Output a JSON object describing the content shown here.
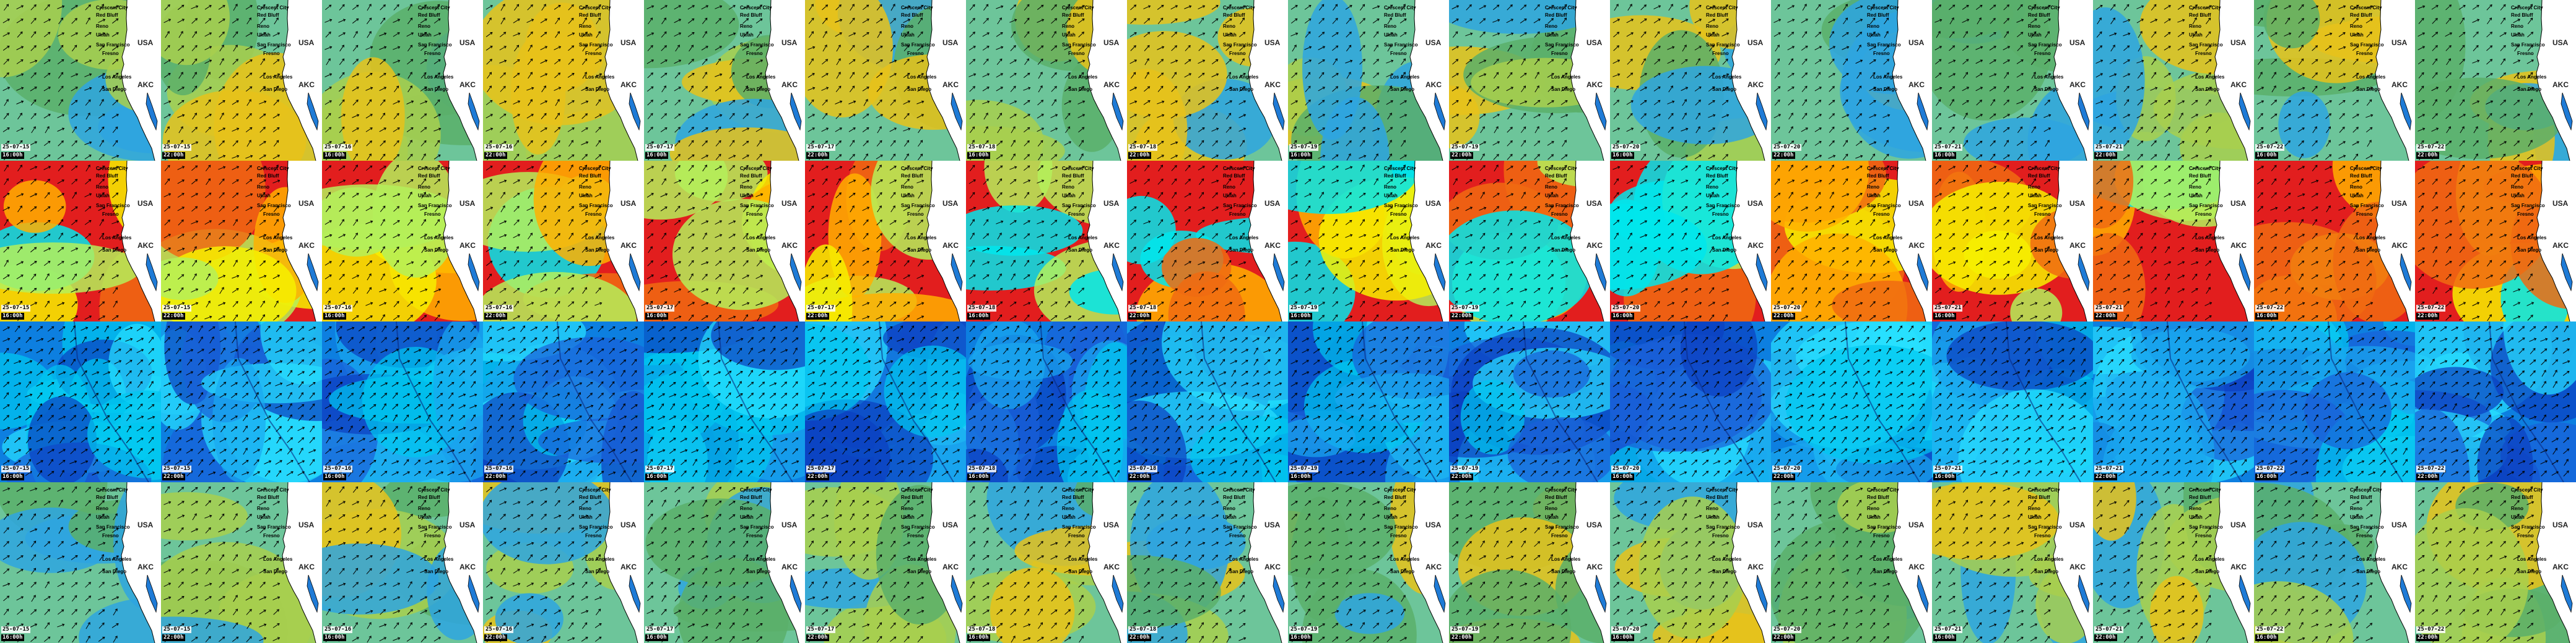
{
  "map": {
    "cities": [
      "Crescent City",
      "Red Bluff",
      "Reno",
      "Ukiah",
      "San Francisco",
      "Fresno",
      "Los Angeles",
      "San Diego"
    ],
    "country_label": "USA",
    "logo_text": "AKC"
  },
  "frames": [
    {
      "date": "25-07-15",
      "time": "16:00h"
    },
    {
      "date": "25-07-15",
      "time": "22:00h"
    },
    {
      "date": "25-07-16",
      "time": "16:00h"
    },
    {
      "date": "25-07-16",
      "time": "22:00h"
    },
    {
      "date": "25-07-17",
      "time": "16:00h"
    },
    {
      "date": "25-07-17",
      "time": "22:00h"
    },
    {
      "date": "25-07-18",
      "time": "16:00h"
    },
    {
      "date": "25-07-18",
      "time": "22:00h"
    },
    {
      "date": "25-07-19",
      "time": "16:00h"
    },
    {
      "date": "25-07-19",
      "time": "22:00h"
    },
    {
      "date": "25-07-20",
      "time": "16:00h"
    },
    {
      "date": "25-07-20",
      "time": "22:00h"
    },
    {
      "date": "25-07-21",
      "time": "16:00h"
    },
    {
      "date": "25-07-21",
      "time": "22:00h"
    },
    {
      "date": "25-07-22",
      "time": "16:00h"
    },
    {
      "date": "25-07-22",
      "time": "22:00h"
    }
  ],
  "rows": [
    {
      "kind": "swell-a",
      "palette": [
        "#6dc59a",
        "#5aaf6a",
        "#a8cf4e",
        "#e8c21a",
        "#2ea5e0"
      ]
    },
    {
      "kind": "temp",
      "palette": [
        "#e21e1e",
        "#f06b12",
        "#ffb000",
        "#f6f000",
        "#b4f05a",
        "#00e6ec"
      ]
    },
    {
      "kind": "wind",
      "palette": [
        "#0d7fe0",
        "#1a5fd8",
        "#0c3fc0",
        "#00c8f0",
        "#28e0ff",
        "#1aa8f0"
      ]
    },
    {
      "kind": "swell-b",
      "palette": [
        "#6dc59a",
        "#5aaf6a",
        "#a8cf4e",
        "#e8c21a",
        "#2ea5e0"
      ]
    }
  ]
}
